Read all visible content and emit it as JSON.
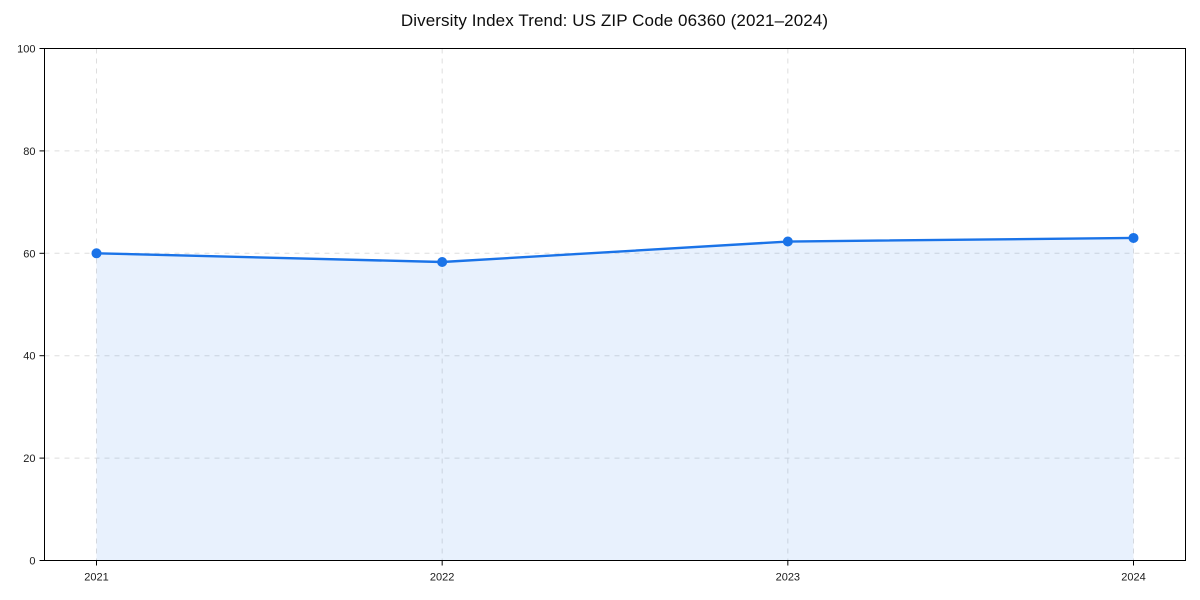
{
  "chart_data": {
    "type": "line",
    "title": "Diversity Index Trend: US ZIP Code 06360 (2021–2024)",
    "x": [
      "2021",
      "2022",
      "2023",
      "2024"
    ],
    "series": [
      {
        "name": "Diversity Index",
        "values": [
          60.0,
          58.3,
          62.3,
          63.0
        ]
      }
    ],
    "xlabel": "",
    "ylabel": "",
    "ylim": [
      0,
      100
    ],
    "yticks": [
      0,
      20,
      40,
      60,
      80,
      100
    ],
    "grid": true,
    "grid_style": "dashed",
    "legend": "none",
    "area_fill": true,
    "marker": "circle",
    "colors": {
      "line": "#1a73e8",
      "marker": "#1a73e8",
      "fill": "#1a73e8",
      "fill_opacity": 0.1,
      "grid": "#dedede",
      "spine": "#000000",
      "tick_label": "#1a1a1a",
      "title": "#0d0d0d",
      "background": "#ffffff"
    }
  }
}
